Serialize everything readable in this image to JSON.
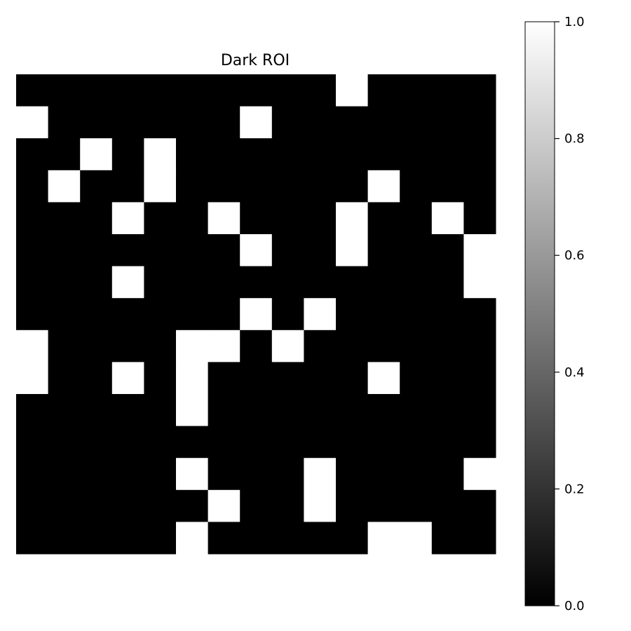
{
  "chart_data": {
    "type": "heatmap",
    "title": "Dark ROI",
    "xlabel": "",
    "ylabel": "",
    "colormap": "gray",
    "colors": {
      "low": "#000000",
      "high": "#ffffff",
      "frame": "#000000"
    },
    "rows": 15,
    "cols": 15,
    "axes_visible": false,
    "values": [
      [
        0,
        0,
        0,
        0,
        0,
        0,
        0,
        0,
        0,
        0,
        1,
        0,
        0,
        0,
        0
      ],
      [
        1,
        0,
        0,
        0,
        0,
        0,
        0,
        1,
        0,
        0,
        0,
        0,
        0,
        0,
        0
      ],
      [
        0,
        0,
        1,
        0,
        1,
        0,
        0,
        0,
        0,
        0,
        0,
        0,
        0,
        0,
        0
      ],
      [
        0,
        1,
        0,
        0,
        1,
        0,
        0,
        0,
        0,
        0,
        0,
        1,
        0,
        0,
        0
      ],
      [
        0,
        0,
        0,
        1,
        0,
        0,
        1,
        0,
        0,
        0,
        1,
        0,
        0,
        1,
        0
      ],
      [
        0,
        0,
        0,
        0,
        0,
        0,
        0,
        1,
        0,
        0,
        1,
        0,
        0,
        0,
        1
      ],
      [
        0,
        0,
        0,
        1,
        0,
        0,
        0,
        0,
        0,
        0,
        0,
        0,
        0,
        0,
        1
      ],
      [
        0,
        0,
        0,
        0,
        0,
        0,
        0,
        1,
        0,
        1,
        0,
        0,
        0,
        0,
        0
      ],
      [
        1,
        0,
        0,
        0,
        0,
        1,
        1,
        0,
        1,
        0,
        0,
        0,
        0,
        0,
        0
      ],
      [
        1,
        0,
        0,
        1,
        0,
        1,
        0,
        0,
        0,
        0,
        0,
        1,
        0,
        0,
        0
      ],
      [
        0,
        0,
        0,
        0,
        0,
        1,
        0,
        0,
        0,
        0,
        0,
        0,
        0,
        0,
        0
      ],
      [
        0,
        0,
        0,
        0,
        0,
        0,
        0,
        0,
        0,
        0,
        0,
        0,
        0,
        0,
        0
      ],
      [
        0,
        0,
        0,
        0,
        0,
        1,
        0,
        0,
        0,
        1,
        0,
        0,
        0,
        0,
        1
      ],
      [
        0,
        0,
        0,
        0,
        0,
        0,
        1,
        0,
        0,
        1,
        0,
        0,
        0,
        0,
        0
      ],
      [
        0,
        0,
        0,
        0,
        0,
        1,
        0,
        0,
        0,
        0,
        0,
        1,
        1,
        0,
        0
      ]
    ],
    "colorbar": {
      "range": [
        0.0,
        1.0
      ],
      "ticks": [
        0.0,
        0.2,
        0.4,
        0.6,
        0.8,
        1.0
      ],
      "tick_labels": [
        "0.0",
        "0.2",
        "0.4",
        "0.6",
        "0.8",
        "1.0"
      ],
      "position": "right"
    }
  }
}
